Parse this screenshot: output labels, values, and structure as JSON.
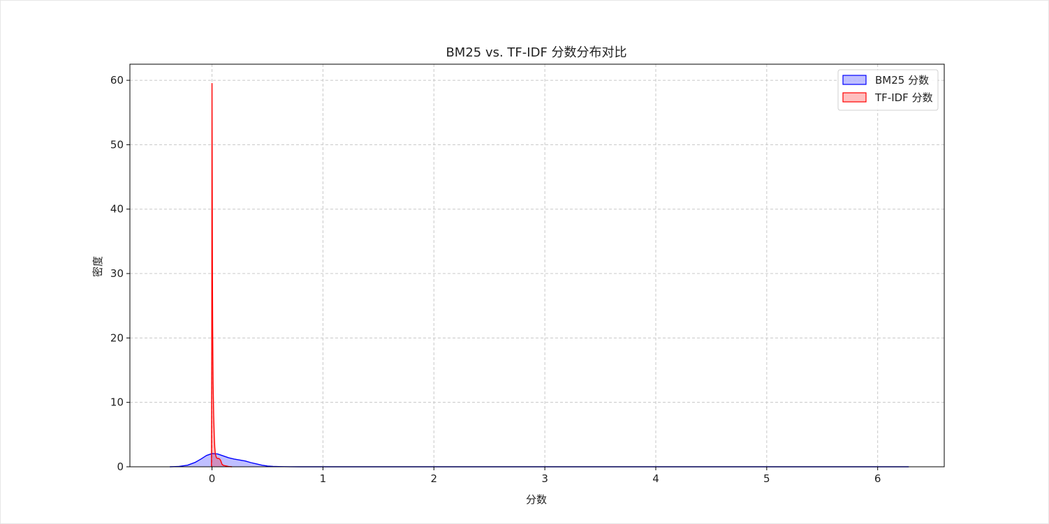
{
  "chart_data": {
    "type": "area",
    "title": "BM25 vs. TF-IDF 分数分布对比",
    "xlabel": "分数",
    "ylabel": "密度",
    "xlim": [
      -0.74,
      6.6
    ],
    "ylim": [
      0,
      62.5
    ],
    "x_ticks": [
      0,
      1,
      2,
      3,
      4,
      5,
      6
    ],
    "y_ticks": [
      0,
      10,
      20,
      30,
      40,
      50,
      60
    ],
    "grid": true,
    "grid_style": "dashed",
    "legend_position": "top-right",
    "series": [
      {
        "name": "BM25 分数",
        "color": "#0000ff",
        "fill_color": "#0000ff",
        "fill_opacity": 0.25,
        "x": [
          -0.38,
          -0.3,
          -0.22,
          -0.15,
          -0.1,
          -0.05,
          0.0,
          0.05,
          0.1,
          0.15,
          0.2,
          0.25,
          0.3,
          0.35,
          0.4,
          0.45,
          0.5,
          0.55,
          0.6,
          0.7,
          0.8,
          1.0,
          2.0,
          3.0,
          4.0,
          5.0,
          6.0,
          6.28
        ],
        "y": [
          0.0,
          0.05,
          0.25,
          0.7,
          1.2,
          1.75,
          2.05,
          2.0,
          1.7,
          1.4,
          1.2,
          1.05,
          0.9,
          0.65,
          0.45,
          0.25,
          0.12,
          0.06,
          0.03,
          0.01,
          0.0,
          0.0,
          0.0,
          0.0,
          0.0,
          0.0,
          0.0,
          0.0
        ]
      },
      {
        "name": "TF-IDF 分数",
        "color": "#ff0000",
        "fill_color": "#ff0000",
        "fill_opacity": 0.25,
        "x": [
          -0.005,
          -0.002,
          0.0,
          0.002,
          0.004,
          0.006,
          0.008,
          0.01,
          0.015,
          0.02,
          0.025,
          0.03,
          0.04,
          0.05,
          0.06,
          0.07,
          0.08,
          0.09,
          0.1,
          0.12,
          0.15,
          0.18
        ],
        "y": [
          0.0,
          20.0,
          59.5,
          45.0,
          30.0,
          22.0,
          17.0,
          13.0,
          8.0,
          5.0,
          3.0,
          2.0,
          1.4,
          1.3,
          1.3,
          1.2,
          0.9,
          0.4,
          0.25,
          0.15,
          0.05,
          0.0
        ]
      }
    ]
  }
}
